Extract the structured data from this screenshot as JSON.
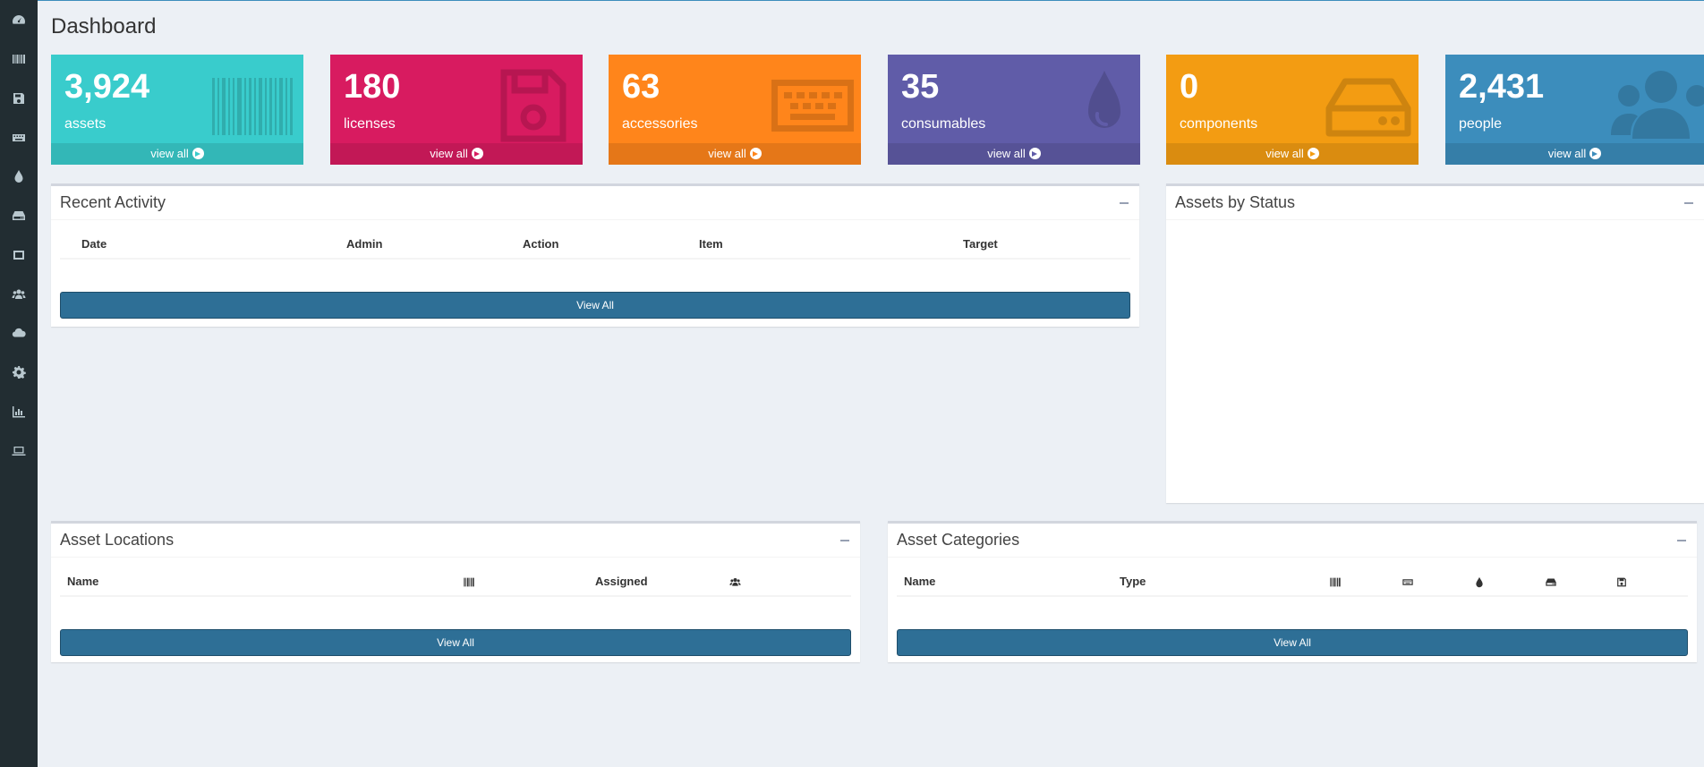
{
  "page": {
    "title": "Dashboard"
  },
  "sidebar": {
    "items": [
      {
        "icon": "dashboard-icon"
      },
      {
        "icon": "barcode-icon"
      },
      {
        "icon": "floppy-disk-icon"
      },
      {
        "icon": "keyboard-icon"
      },
      {
        "icon": "tint-drop-icon"
      },
      {
        "icon": "hdd-icon"
      },
      {
        "icon": "kit-icon"
      },
      {
        "icon": "users-icon"
      },
      {
        "icon": "cloud-download-icon"
      },
      {
        "icon": "gear-icon"
      },
      {
        "icon": "bar-chart-icon"
      },
      {
        "icon": "laptop-icon"
      }
    ]
  },
  "tiles": [
    {
      "count": "3,924",
      "label": "assets",
      "link": "view all",
      "color": "#39cccc",
      "icon": "barcode-icon"
    },
    {
      "count": "180",
      "label": "licenses",
      "link": "view all",
      "color": "#d81b60",
      "icon": "floppy-disk-icon"
    },
    {
      "count": "63",
      "label": "accessories",
      "link": "view all",
      "color": "#ff851b",
      "icon": "keyboard-icon"
    },
    {
      "count": "35",
      "label": "consumables",
      "link": "view all",
      "color": "#605ca8",
      "icon": "tint-drop-icon"
    },
    {
      "count": "0",
      "label": "components",
      "link": "view all",
      "color": "#f39c12",
      "icon": "hdd-icon"
    },
    {
      "count": "2,431",
      "label": "people",
      "link": "view all",
      "color": "#3c8dbc",
      "icon": "users-icon"
    }
  ],
  "recent_activity": {
    "title": "Recent Activity",
    "columns": [
      "Date",
      "Admin",
      "Action",
      "Item",
      "Target"
    ],
    "button": "View All"
  },
  "assets_by_status": {
    "title": "Assets by Status"
  },
  "asset_locations": {
    "title": "Asset Locations",
    "columns": [
      "Name",
      "Assigned"
    ],
    "icon_columns": [
      "barcode-icon",
      "users-icon"
    ],
    "button": "View All"
  },
  "asset_categories": {
    "title": "Asset Categories",
    "columns": [
      "Name",
      "Type"
    ],
    "icon_columns": [
      "barcode-icon",
      "keyboard-icon",
      "tint-drop-icon",
      "hdd-icon",
      "floppy-disk-icon"
    ],
    "button": "View All"
  }
}
